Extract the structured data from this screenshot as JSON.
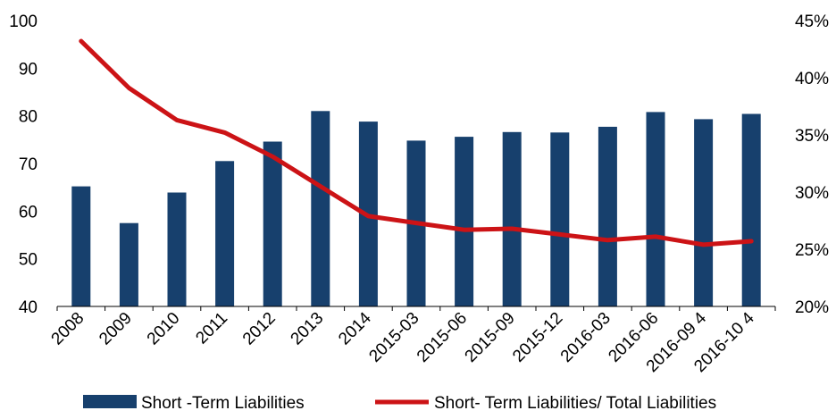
{
  "chart_data": {
    "type": "bar",
    "categories": [
      "2008",
      "2009",
      "2010",
      "2011",
      "2012",
      "2013",
      "2014",
      "2015-03",
      "2015-06",
      "2015-09",
      "2015-12",
      "2016-03",
      "2016-06",
      "2016-09 4",
      "2016-10 4"
    ],
    "series": [
      {
        "name": "Short -Term Liabilities",
        "type": "bar",
        "axis": "left",
        "color": "#17406d",
        "values": [
          65.2,
          57.5,
          63.9,
          70.5,
          74.6,
          81.0,
          78.8,
          74.8,
          75.6,
          76.6,
          76.5,
          77.7,
          80.8,
          79.3,
          80.4
        ]
      },
      {
        "name": "Short- Term Liabilities/ Total Liabilities",
        "type": "line",
        "axis": "right",
        "color": "#cc1316",
        "values": [
          43.2,
          39.1,
          36.3,
          35.2,
          33.1,
          30.5,
          27.9,
          27.3,
          26.7,
          26.8,
          26.3,
          25.8,
          26.1,
          25.4,
          25.7
        ]
      }
    ],
    "y_left": {
      "ylim": [
        40,
        100
      ],
      "ticks": [
        "40",
        "50",
        "60",
        "70",
        "80",
        "90",
        "100"
      ]
    },
    "y_right": {
      "ylim": [
        20,
        45
      ],
      "ticks": [
        "20%",
        "25%",
        "30%",
        "35%",
        "40%",
        "45%"
      ]
    },
    "grid": false,
    "legend": "bottom"
  }
}
